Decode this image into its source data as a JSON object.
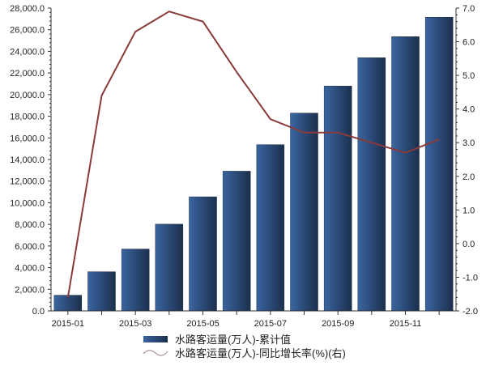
{
  "chart_data": {
    "type": "bar+line",
    "categories": [
      "2015-01",
      "2015-02",
      "2015-03",
      "2015-04",
      "2015-05",
      "2015-06",
      "2015-07",
      "2015-08",
      "2015-09",
      "2015-10",
      "2015-11",
      "2015-12"
    ],
    "x_tick_labels": [
      "2015-01",
      "2015-03",
      "2015-05",
      "2015-07",
      "2015-09",
      "2015-11"
    ],
    "series": [
      {
        "name": "水路客运量(万人)-累计值",
        "type": "bar",
        "axis": "left",
        "color": "#2a4a75",
        "values": [
          1450,
          3620,
          5720,
          8020,
          10550,
          12920,
          15370,
          18290,
          20790,
          23410,
          25360,
          27160
        ]
      },
      {
        "name": "水路客运量(万人)-同比增长率(%)(右)",
        "type": "line",
        "axis": "right",
        "color": "#8b3a3a",
        "values": [
          -1.6,
          4.4,
          6.3,
          6.9,
          6.6,
          5.1,
          3.7,
          3.3,
          3.3,
          3.0,
          2.7,
          3.1
        ]
      }
    ],
    "y_left": {
      "ylim": [
        0,
        28000
      ],
      "ticks": [
        "0.0",
        "2,000.0",
        "4,000.0",
        "6,000.0",
        "8,000.0",
        "10,000.0",
        "12,000.0",
        "14,000.0",
        "16,000.0",
        "18,000.0",
        "20,000.0",
        "22,000.0",
        "24,000.0",
        "26,000.0",
        "28,000.0"
      ]
    },
    "y_right": {
      "ylim": [
        -2,
        7
      ],
      "ticks": [
        "-2.0",
        "-1.0",
        "0.0",
        "1.0",
        "2.0",
        "3.0",
        "4.0",
        "5.0",
        "6.0",
        "7.0"
      ]
    },
    "grid": false,
    "legend": "bottom"
  }
}
